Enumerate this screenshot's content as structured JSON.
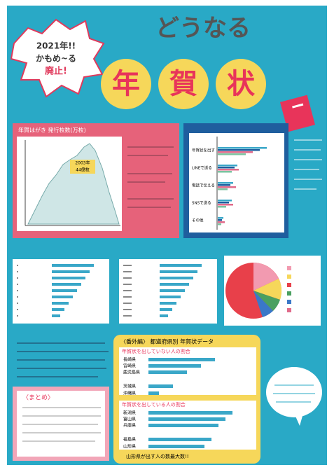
{
  "header": {
    "badge": [
      "2021年!!",
      "かもめ~る",
      "廃止!"
    ],
    "title_top": "どうなる",
    "title_main": [
      "年",
      "賀",
      "状"
    ]
  },
  "panel_issue": {
    "title": "年賀はがき 発行枚数(万枚)",
    "annotation": [
      "2003年",
      "44億枚"
    ]
  },
  "panel_means": {
    "categories": [
      "年賀状を出す",
      "LINEで送る",
      "電話で伝える",
      "SNSで送る",
      "その他"
    ]
  },
  "summary": {
    "title": "〈まとめ〉"
  },
  "prefecture": {
    "title": "〈番外編〉 都道府県別 年賀状データ",
    "not_sending": {
      "title": "年賀状を出していない人の割合",
      "rows": [
        "長崎県",
        "宮崎県",
        "鹿児島県",
        "茨城県",
        "沖縄県"
      ]
    },
    "sending": {
      "title": "年賀状を出している人の割合",
      "rows": [
        "新潟県",
        "富山県",
        "兵庫県",
        "福島県",
        "山形県"
      ]
    },
    "footer": "山形県が出す人の数最大数!!"
  }
}
